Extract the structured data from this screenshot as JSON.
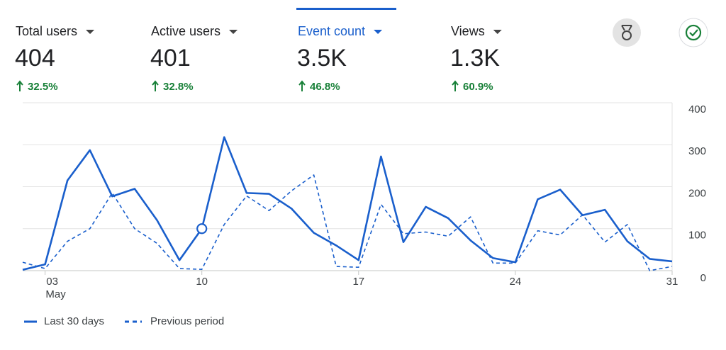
{
  "metrics": [
    {
      "label": "Total users",
      "value": "404",
      "change": "32.5%"
    },
    {
      "label": "Active users",
      "value": "401",
      "change": "32.8%"
    },
    {
      "label": "Event count",
      "value": "3.5K",
      "change": "46.8%"
    },
    {
      "label": "Views",
      "value": "1.3K",
      "change": "60.9%"
    }
  ],
  "selected_metric": 2,
  "chart_data": {
    "type": "line",
    "x": [
      2,
      3,
      4,
      5,
      6,
      7,
      8,
      9,
      10,
      11,
      12,
      13,
      14,
      15,
      16,
      17,
      18,
      19,
      20,
      21,
      22,
      23,
      24,
      25,
      26,
      27,
      28,
      29,
      30,
      31
    ],
    "x_month": "May",
    "xlim": [
      2,
      31
    ],
    "xticks": [
      {
        "value": 3,
        "label": "03"
      },
      10,
      17,
      24,
      31
    ],
    "ylim": [
      0,
      400
    ],
    "yticks": [
      0,
      100,
      200,
      300,
      400
    ],
    "grid": true,
    "highlight_x": 10,
    "series": [
      {
        "name": "Last 30 days",
        "color": "#1a5fcc",
        "style": "solid",
        "values": [
          2,
          15,
          215,
          287,
          177,
          195,
          120,
          25,
          100,
          318,
          185,
          183,
          148,
          90,
          60,
          25,
          272,
          68,
          152,
          125,
          72,
          30,
          20,
          170,
          193,
          132,
          145,
          70,
          28,
          22
        ]
      },
      {
        "name": "Previous period",
        "color": "#1a5fcc",
        "style": "dashed",
        "values": [
          20,
          5,
          70,
          100,
          185,
          100,
          65,
          5,
          3,
          110,
          178,
          143,
          190,
          228,
          10,
          8,
          158,
          88,
          92,
          82,
          128,
          18,
          18,
          95,
          85,
          133,
          68,
          110,
          0,
          10
        ]
      }
    ]
  }
}
